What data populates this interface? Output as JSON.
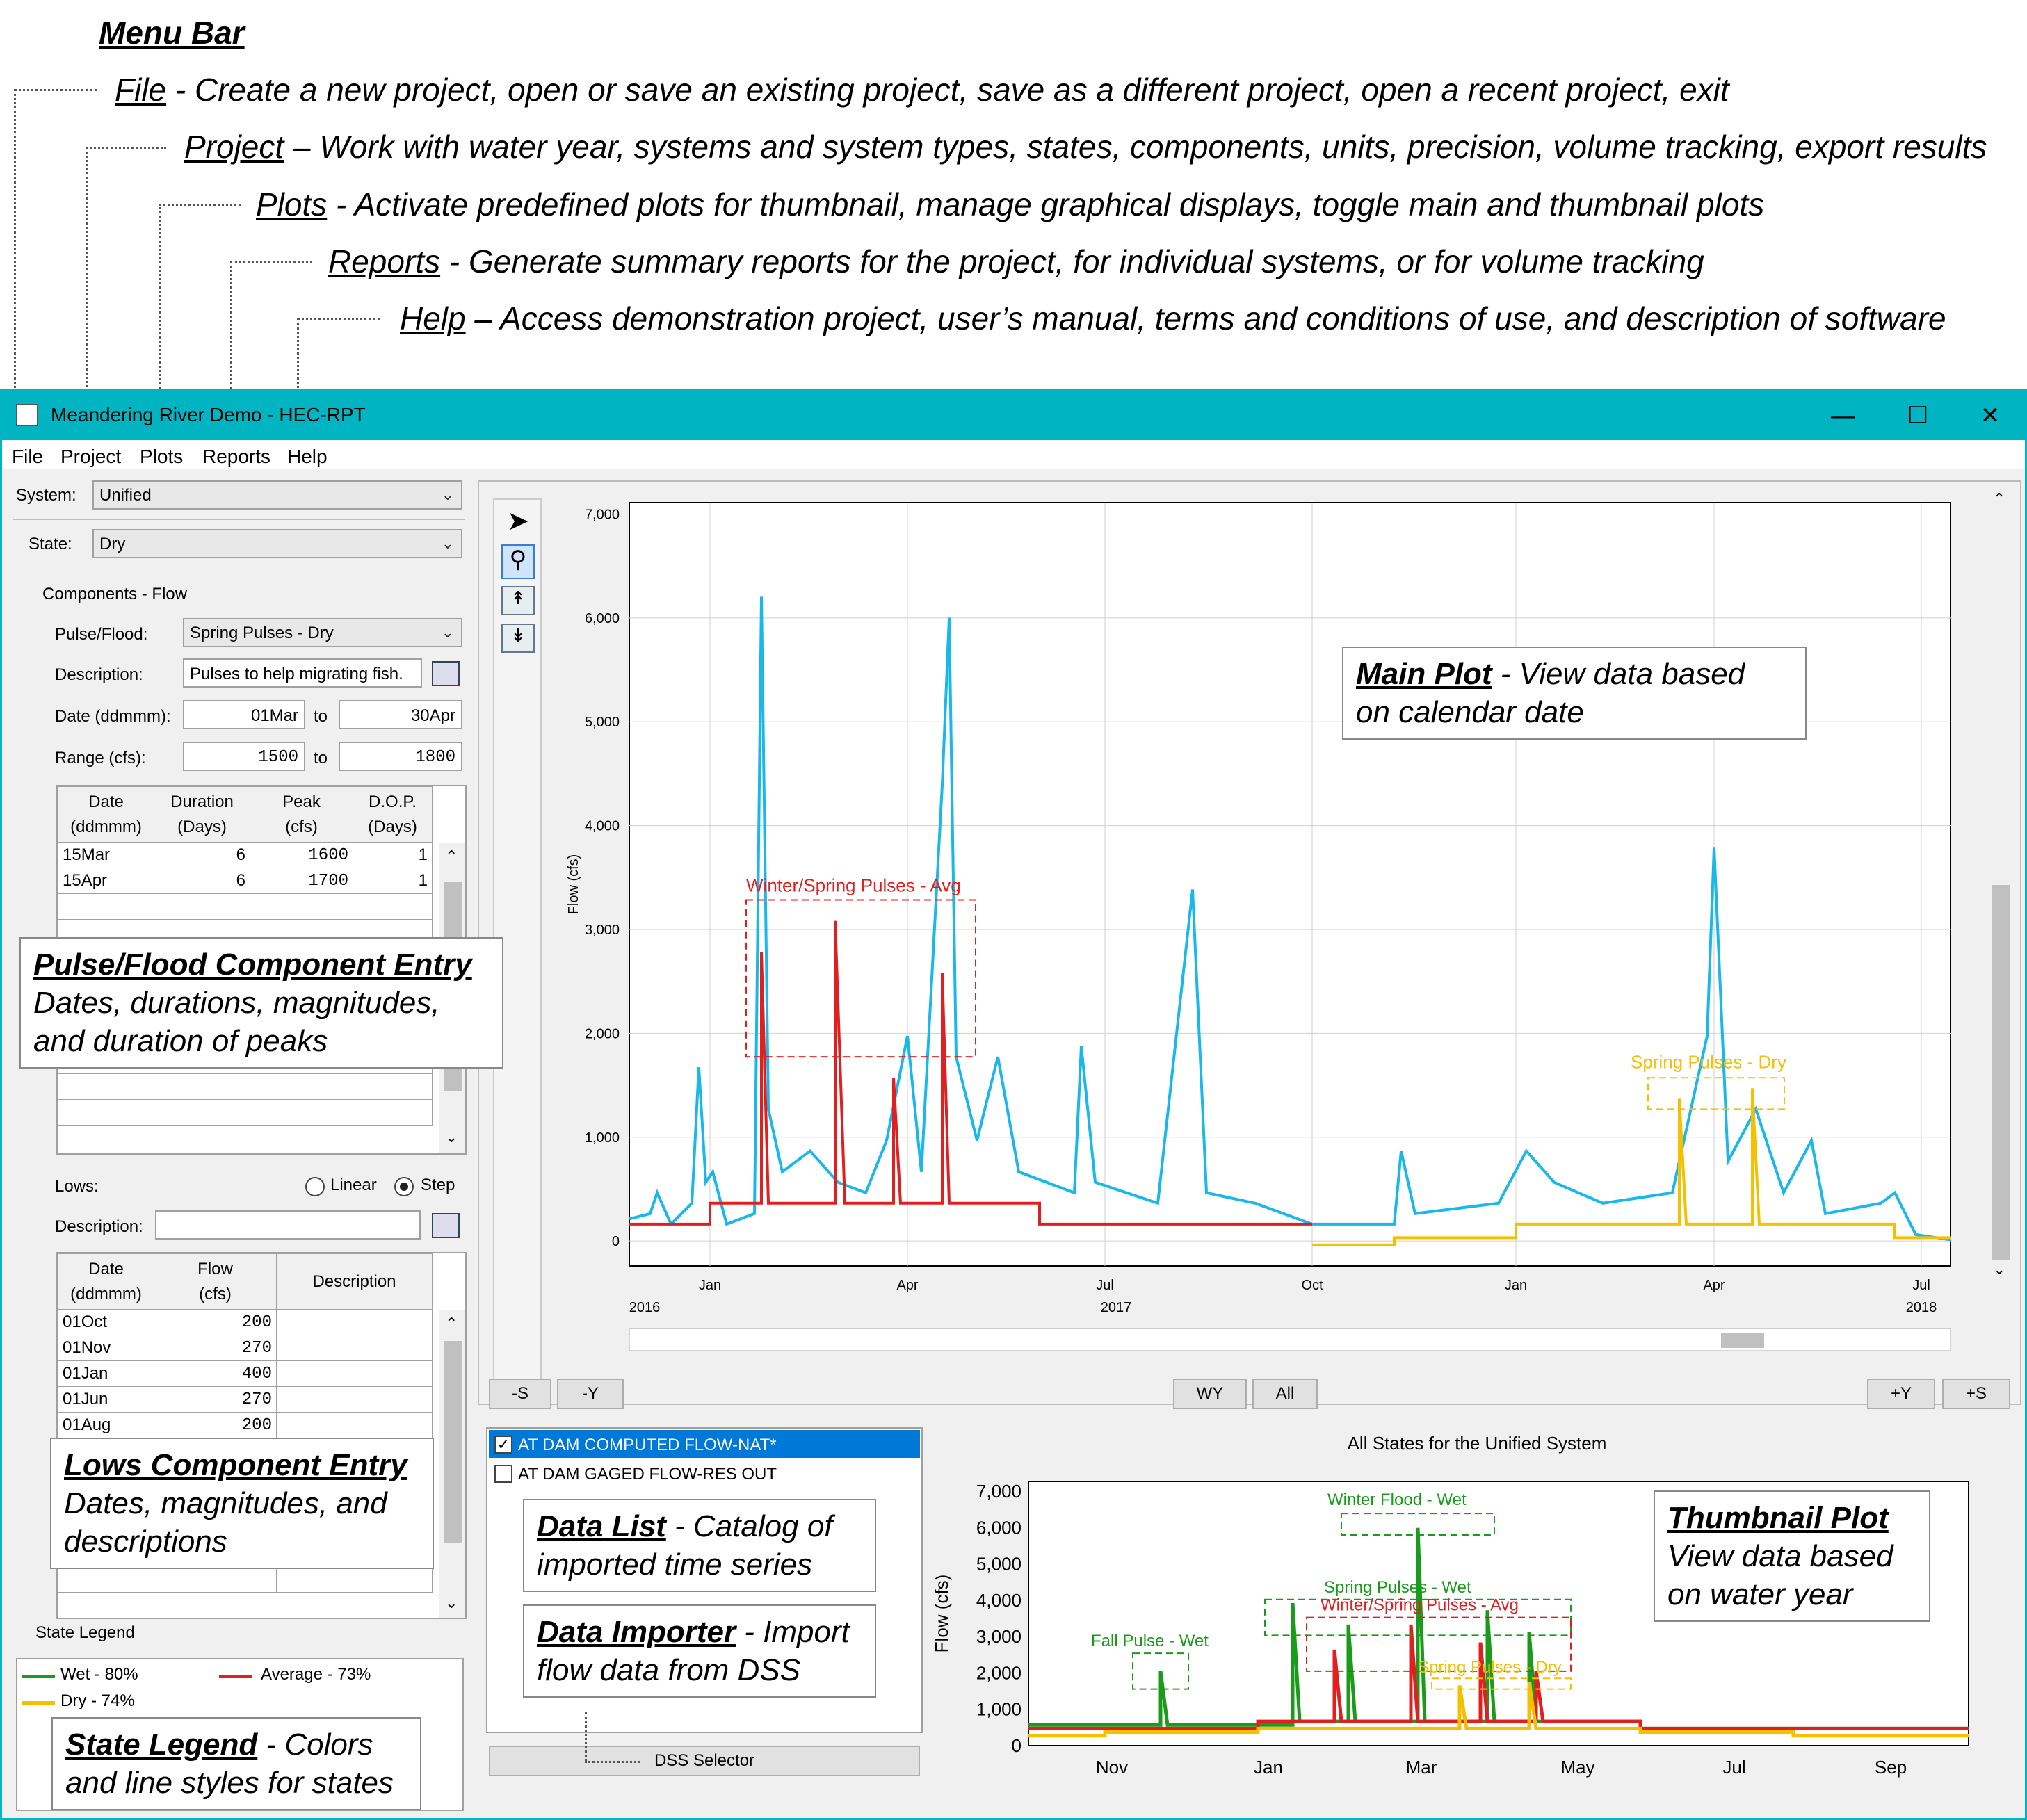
{
  "annotations": {
    "menu_bar_title": "Menu Bar",
    "file": {
      "key": "File",
      "text": " - Create a new project, open or save an existing project, save as a different project, open a recent project, exit"
    },
    "project": {
      "key": "Project",
      "text": " – Work with water year, systems and system types, states, components, units, precision, volume tracking, export results"
    },
    "plots": {
      "key": "Plots",
      "text": " - Activate predefined plots for thumbnail, manage graphical displays, toggle main and thumbnail plots"
    },
    "reports": {
      "key": "Reports",
      "text": " - Generate summary reports for the project, for individual systems, or for volume tracking"
    },
    "help": {
      "key": "Help",
      "text": " – Access demonstration project, user’s manual, terms and conditions of use, and description of software"
    }
  },
  "window": {
    "title": "Meandering River Demo - HEC-RPT",
    "menu": [
      "File",
      "Project",
      "Plots",
      "Reports",
      "Help"
    ]
  },
  "left": {
    "system_label": "System:",
    "system_value": "Unified",
    "state_label": "State:",
    "state_value": "Dry",
    "components_label": "Components - Flow",
    "pulse_label": "Pulse/Flood:",
    "pulse_value": "Spring Pulses - Dry",
    "desc_label": "Description:",
    "desc_value": "Pulses to help migrating fish.",
    "date_label": "Date (ddmmm):",
    "date_from": "01Mar",
    "date_to": "30Apr",
    "to": "to",
    "range_label": "Range (cfs):",
    "range_from": "1500",
    "range_to": "1800",
    "pulse_table": {
      "headers": [
        "Date\n(ddmmm)",
        "Duration\n(Days)",
        "Peak\n(cfs)",
        "D.O.P.\n(Days)"
      ],
      "rows": [
        [
          "15Mar",
          "6",
          "1600",
          "1"
        ],
        [
          "15Apr",
          "6",
          "1700",
          "1"
        ]
      ]
    },
    "lows_label": "Lows:",
    "linear": "Linear",
    "step": "Step",
    "lows_desc_label": "Description:",
    "lows_table": {
      "headers": [
        "Date\n(ddmmm)",
        "Flow\n(cfs)",
        "Description"
      ],
      "rows": [
        [
          "01Oct",
          "200",
          ""
        ],
        [
          "01Nov",
          "270",
          ""
        ],
        [
          "01Jan",
          "400",
          ""
        ],
        [
          "01Jun",
          "270",
          ""
        ],
        [
          "01Aug",
          "200",
          ""
        ]
      ]
    },
    "legend_title": "State Legend",
    "legend": [
      {
        "label": "Wet - 80%",
        "color": "#1a9c1a"
      },
      {
        "label": "Average - 73%",
        "color": "#e02020"
      },
      {
        "label": "Dry - 74%",
        "color": "#f5c000"
      }
    ]
  },
  "callouts": {
    "pulse": {
      "title": "Pulse/Flood Component Entry",
      "line1": "Dates, durations, magnitudes,",
      "line2": "and duration of peaks"
    },
    "lows": {
      "title": "Lows Component Entry",
      "line1": "Dates, magnitudes, and",
      "line2": "descriptions"
    },
    "legend": {
      "title": "State Legend",
      "rest": " - Colors",
      "line2": "and line styles for states"
    },
    "main_plot": {
      "title": "Main Plot",
      "rest": " - View data based",
      "line2": "on calendar date"
    },
    "data_list": {
      "title": "Data List",
      "rest": " - Catalog of",
      "line2": "imported time series"
    },
    "data_importer": {
      "title": "Data Importer",
      "rest": " - Import",
      "line2": "flow data from DSS"
    },
    "thumbnail": {
      "title": "Thumbnail Plot",
      "line1": "View data based",
      "line2": "on water year"
    }
  },
  "main_plot": {
    "ylabel": "Flow (cfs)",
    "yticks": [
      "7,000",
      "6,000",
      "5,000",
      "4,000",
      "3,000",
      "2,000",
      "1,000",
      "0"
    ],
    "xticks": [
      "Jan",
      "Apr",
      "Jul",
      "Oct",
      "Jan",
      "Apr",
      "Jul"
    ],
    "years": [
      "2016",
      "2017",
      "2018"
    ],
    "annot_avg": "Winter/Spring Pulses - Avg",
    "annot_dry": "Spring Pulses - Dry",
    "colors": {
      "flow": "#1ab8ea",
      "avg": "#e02020",
      "dry": "#f5c000"
    }
  },
  "buttons": {
    "s_minus": "-S",
    "y_minus": "-Y",
    "wy": "WY",
    "all": "All",
    "y_plus": "+Y",
    "s_plus": "+S",
    "dss": "DSS Selector"
  },
  "data_list": [
    {
      "label": "AT DAM COMPUTED FLOW-NAT*",
      "checked": true
    },
    {
      "label": "AT DAM GAGED FLOW-RES OUT",
      "checked": false
    }
  ],
  "thumb": {
    "title": "All States for the Unified System",
    "ylabel": "Flow (cfs)",
    "yticks": [
      "7,000",
      "6,000",
      "5,000",
      "4,000",
      "3,000",
      "2,000",
      "1,000",
      "0"
    ],
    "xticks": [
      "Nov",
      "Jan",
      "Mar",
      "May",
      "Jul",
      "Sep"
    ],
    "annots": [
      "Winter Flood - Wet",
      "Spring Pulses - Wet",
      "Winter/Spring Pulses - Avg",
      "Fall Pulse - Wet",
      "Spring Pulses - Dry"
    ]
  }
}
